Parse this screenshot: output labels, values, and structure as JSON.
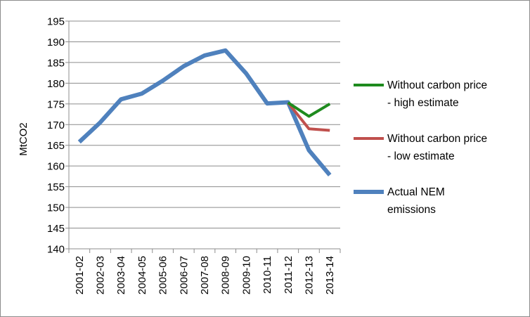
{
  "chart_data": {
    "type": "line",
    "title": "",
    "xlabel": "",
    "ylabel": "MtCO2",
    "ylim": [
      140,
      195
    ],
    "ytick_step": 5,
    "grid": "horizontal",
    "legend_position": "right",
    "categories": [
      "2001-02",
      "2002-03",
      "2003-04",
      "2004-05",
      "2005-06",
      "2006-07",
      "2007-08",
      "2008-09",
      "2009-10",
      "2010-11",
      "2011-12",
      "2012-13",
      "2013-14"
    ],
    "series": [
      {
        "name": "Without carbon price - high estimate",
        "legend_lines": [
          "Without carbon price",
          "- high estimate"
        ],
        "color": "#1e8b1e",
        "values": [
          null,
          null,
          null,
          null,
          null,
          null,
          null,
          null,
          null,
          null,
          175.3,
          172.0,
          175.0
        ]
      },
      {
        "name": "Without carbon price - low estimate",
        "legend_lines": [
          "Without carbon price",
          "- low estimate"
        ],
        "color": "#c0504d",
        "values": [
          null,
          null,
          null,
          null,
          null,
          null,
          null,
          null,
          null,
          null,
          175.3,
          169.0,
          168.6
        ]
      },
      {
        "name": "Actual NEM emissions",
        "legend_lines": [
          "Actual NEM",
          "emissions"
        ],
        "color": "#4f81bd",
        "values": [
          165.8,
          170.5,
          176.1,
          177.5,
          180.6,
          184.1,
          186.7,
          187.9,
          182.3,
          175.1,
          175.4,
          163.8,
          157.8
        ]
      }
    ]
  }
}
